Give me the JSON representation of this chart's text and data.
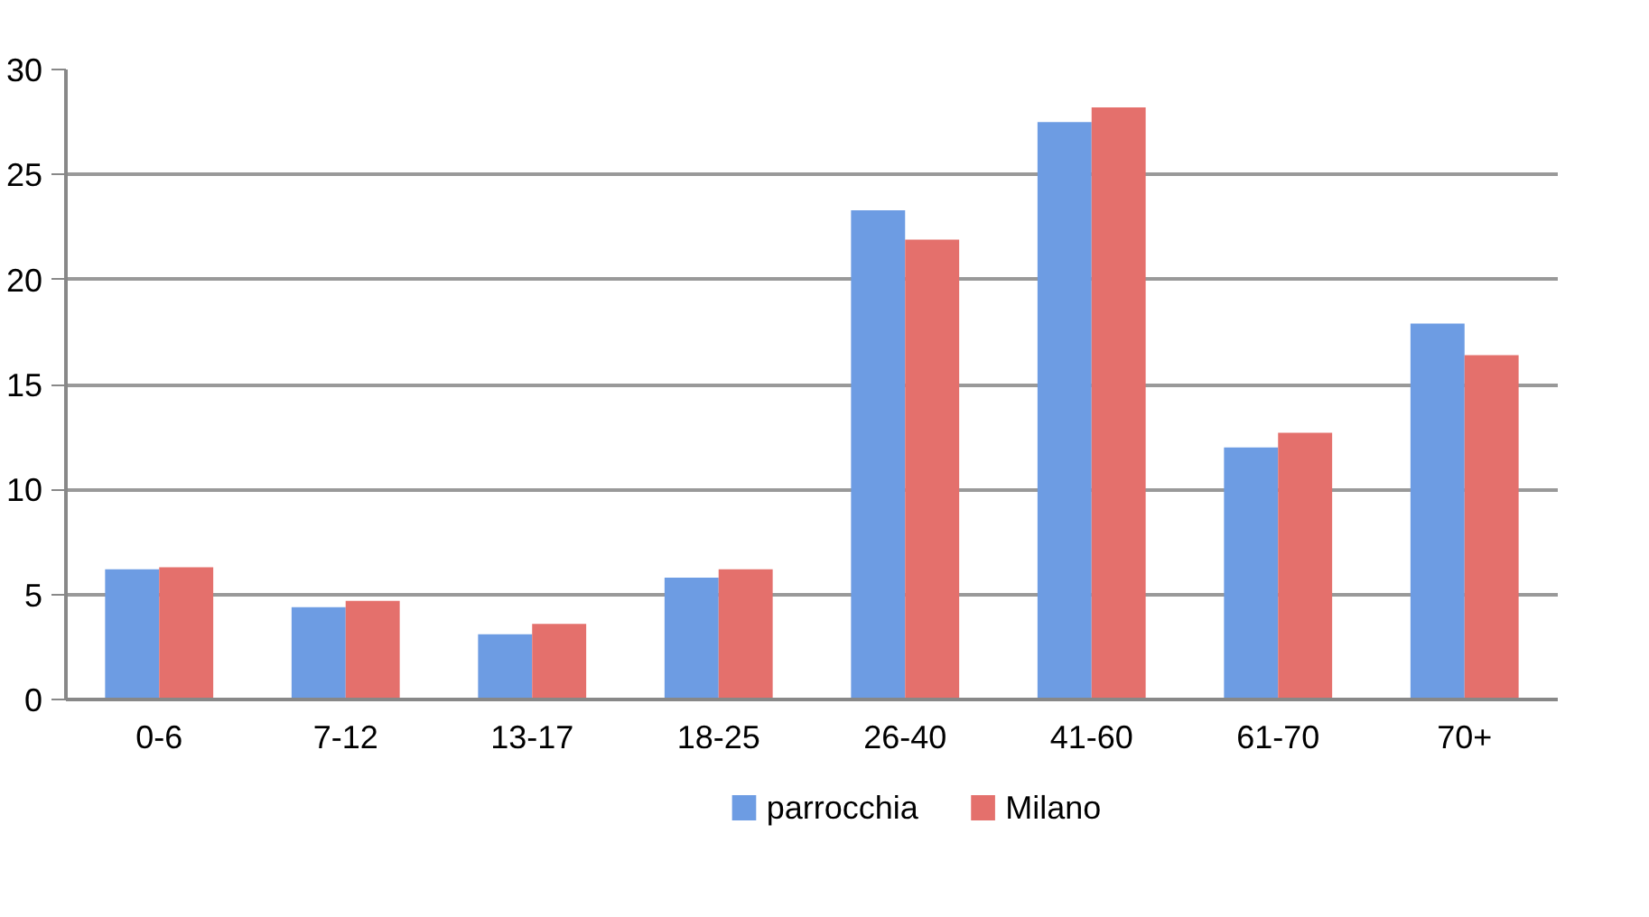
{
  "chart_data": {
    "type": "bar",
    "categories": [
      "0-6",
      "7-12",
      "13-17",
      "18-25",
      "26-40",
      "41-60",
      "61-70",
      "70+"
    ],
    "series": [
      {
        "name": "parrocchia",
        "color": "#6d9ce3",
        "values": [
          6.2,
          4.4,
          3.1,
          5.8,
          23.3,
          27.5,
          12.0,
          17.9
        ]
      },
      {
        "name": "Milano",
        "color": "#e4706c",
        "values": [
          6.3,
          4.7,
          3.6,
          6.2,
          21.9,
          28.2,
          12.7,
          16.4
        ]
      }
    ],
    "ylim": [
      0,
      30
    ],
    "yticks": [
      0,
      5,
      10,
      15,
      20,
      25,
      30
    ],
    "grid": "y",
    "legend": "bottom"
  }
}
